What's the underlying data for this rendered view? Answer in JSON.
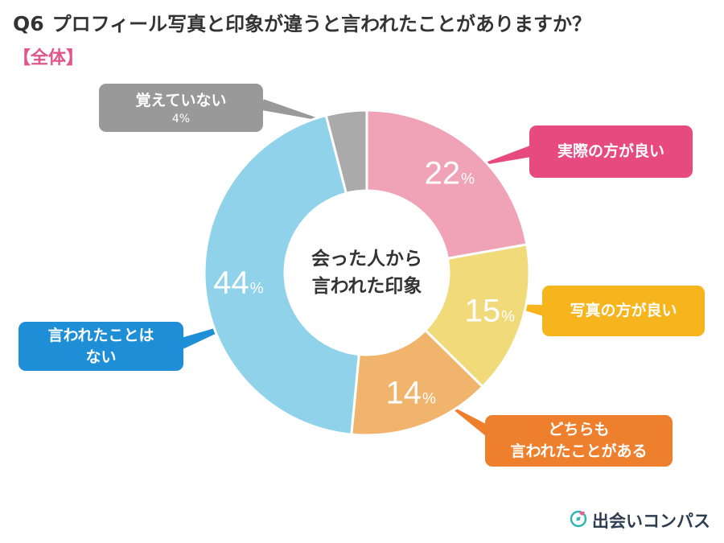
{
  "title": {
    "q": "Q6",
    "text": "プロフィール写真と印象が違うと言われたことがありますか？"
  },
  "subtitle": "【全体】",
  "center_label": {
    "line1": "会った人から",
    "line2": "言われた印象"
  },
  "chart_data": {
    "type": "pie",
    "title": "Q6 プロフィール写真と印象が違うと言われたことがありますか？",
    "subtitle": "【全体】",
    "center_text": "会った人から言われた印象",
    "unit": "%",
    "slices": [
      {
        "label": "実際の方が良い",
        "value": 22,
        "color": "#f0a2b6",
        "callout_color": "#e74a7e"
      },
      {
        "label": "写真の方が良い",
        "value": 15,
        "color": "#f0da7a",
        "callout_color": "#f6b41d"
      },
      {
        "label": "どちらも言われたことがある",
        "value": 14,
        "color": "#f0b46c",
        "callout_color": "#ee7f2c"
      },
      {
        "label": "言われたことはない",
        "value": 44,
        "color": "#8fd2ea",
        "callout_color": "#1e8fd6"
      },
      {
        "label": "覚えていない",
        "value": 4,
        "color": "#aaaaaa",
        "callout_color": "#999999"
      }
    ]
  },
  "callouts": [
    {
      "line1": "実際の方が良い"
    },
    {
      "line1": "写真の方が良い"
    },
    {
      "line1": "どちらも",
      "line2": "言われたことがある"
    },
    {
      "line1": "言われたことは",
      "line2": "ない"
    },
    {
      "line1": "覚えていない",
      "pct": "4%"
    }
  ],
  "brand": {
    "name": "出会いコンパス",
    "icon": "compass-heart-icon"
  }
}
